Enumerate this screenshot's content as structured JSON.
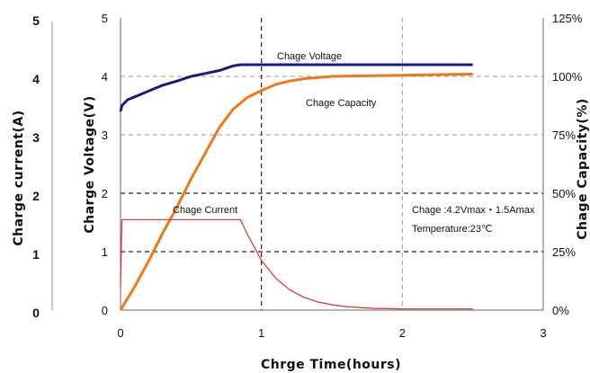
{
  "chart_data": {
    "type": "line",
    "xlabel": "Chrge Time(hours)",
    "ylabel_voltage": "Charge Voltage(V)",
    "ylabel_current": "Charge current(A)",
    "ylabel_capacity": "Chage Capacity(%)",
    "xlim": [
      0,
      3
    ],
    "ylim_voltage": [
      0,
      5
    ],
    "ylim_current": [
      0,
      5
    ],
    "ylim_capacity": [
      0,
      125
    ],
    "x_ticks": [
      "0",
      "1",
      "2",
      "3"
    ],
    "y_ticks_voltage": [
      "0",
      "1",
      "2",
      "3",
      "4",
      "5"
    ],
    "y_ticks_current": [
      "0",
      "1",
      "2",
      "3",
      "4",
      "5"
    ],
    "y_ticks_capacity": [
      "0%",
      "25%",
      "50%",
      "75%",
      "100%",
      "125%"
    ],
    "grid": true,
    "series": [
      {
        "name": "Chage Voltage",
        "axis": "voltage",
        "color": "#1a1a80",
        "x": [
          0,
          0.01,
          0.05,
          0.1,
          0.2,
          0.3,
          0.4,
          0.5,
          0.6,
          0.7,
          0.8,
          0.85,
          0.9,
          1.0,
          1.5,
          2.0,
          2.5
        ],
        "y": [
          3.4,
          3.5,
          3.6,
          3.65,
          3.75,
          3.85,
          3.92,
          4.0,
          4.05,
          4.1,
          4.18,
          4.2,
          4.2,
          4.2,
          4.2,
          4.2,
          4.2
        ]
      },
      {
        "name": "Chage Capacity",
        "axis": "capacity",
        "color": "#f07818",
        "x": [
          0,
          0.1,
          0.2,
          0.3,
          0.4,
          0.5,
          0.6,
          0.7,
          0.8,
          0.9,
          1.0,
          1.1,
          1.2,
          1.3,
          1.5,
          1.8,
          2.0,
          2.5
        ],
        "y": [
          0,
          10,
          21,
          33,
          44,
          56,
          67,
          78,
          86,
          91,
          94,
          96.5,
          98,
          99,
          100,
          100.3,
          100.5,
          101
        ]
      },
      {
        "name": "Chage Current",
        "axis": "current",
        "color": "#e03020",
        "x": [
          0,
          0.005,
          0.01,
          0.85,
          0.9,
          1.0,
          1.1,
          1.2,
          1.3,
          1.4,
          1.5,
          1.6,
          1.8,
          2.0,
          2.5
        ],
        "y": [
          0.4,
          1.0,
          1.55,
          1.55,
          1.3,
          0.85,
          0.55,
          0.35,
          0.22,
          0.14,
          0.09,
          0.06,
          0.03,
          0.02,
          0.02
        ]
      }
    ],
    "annotations": [
      {
        "id": "voltage_label",
        "text": "Chage Voltage"
      },
      {
        "id": "capacity_label",
        "text": "Chage Capacity"
      },
      {
        "id": "current_label",
        "text": "Chage Current"
      },
      {
        "id": "condition_line1",
        "text": "Chage :4.2Vmax・1.5Amax"
      },
      {
        "id": "condition_line2",
        "text": "Temperature:23℃"
      }
    ]
  }
}
